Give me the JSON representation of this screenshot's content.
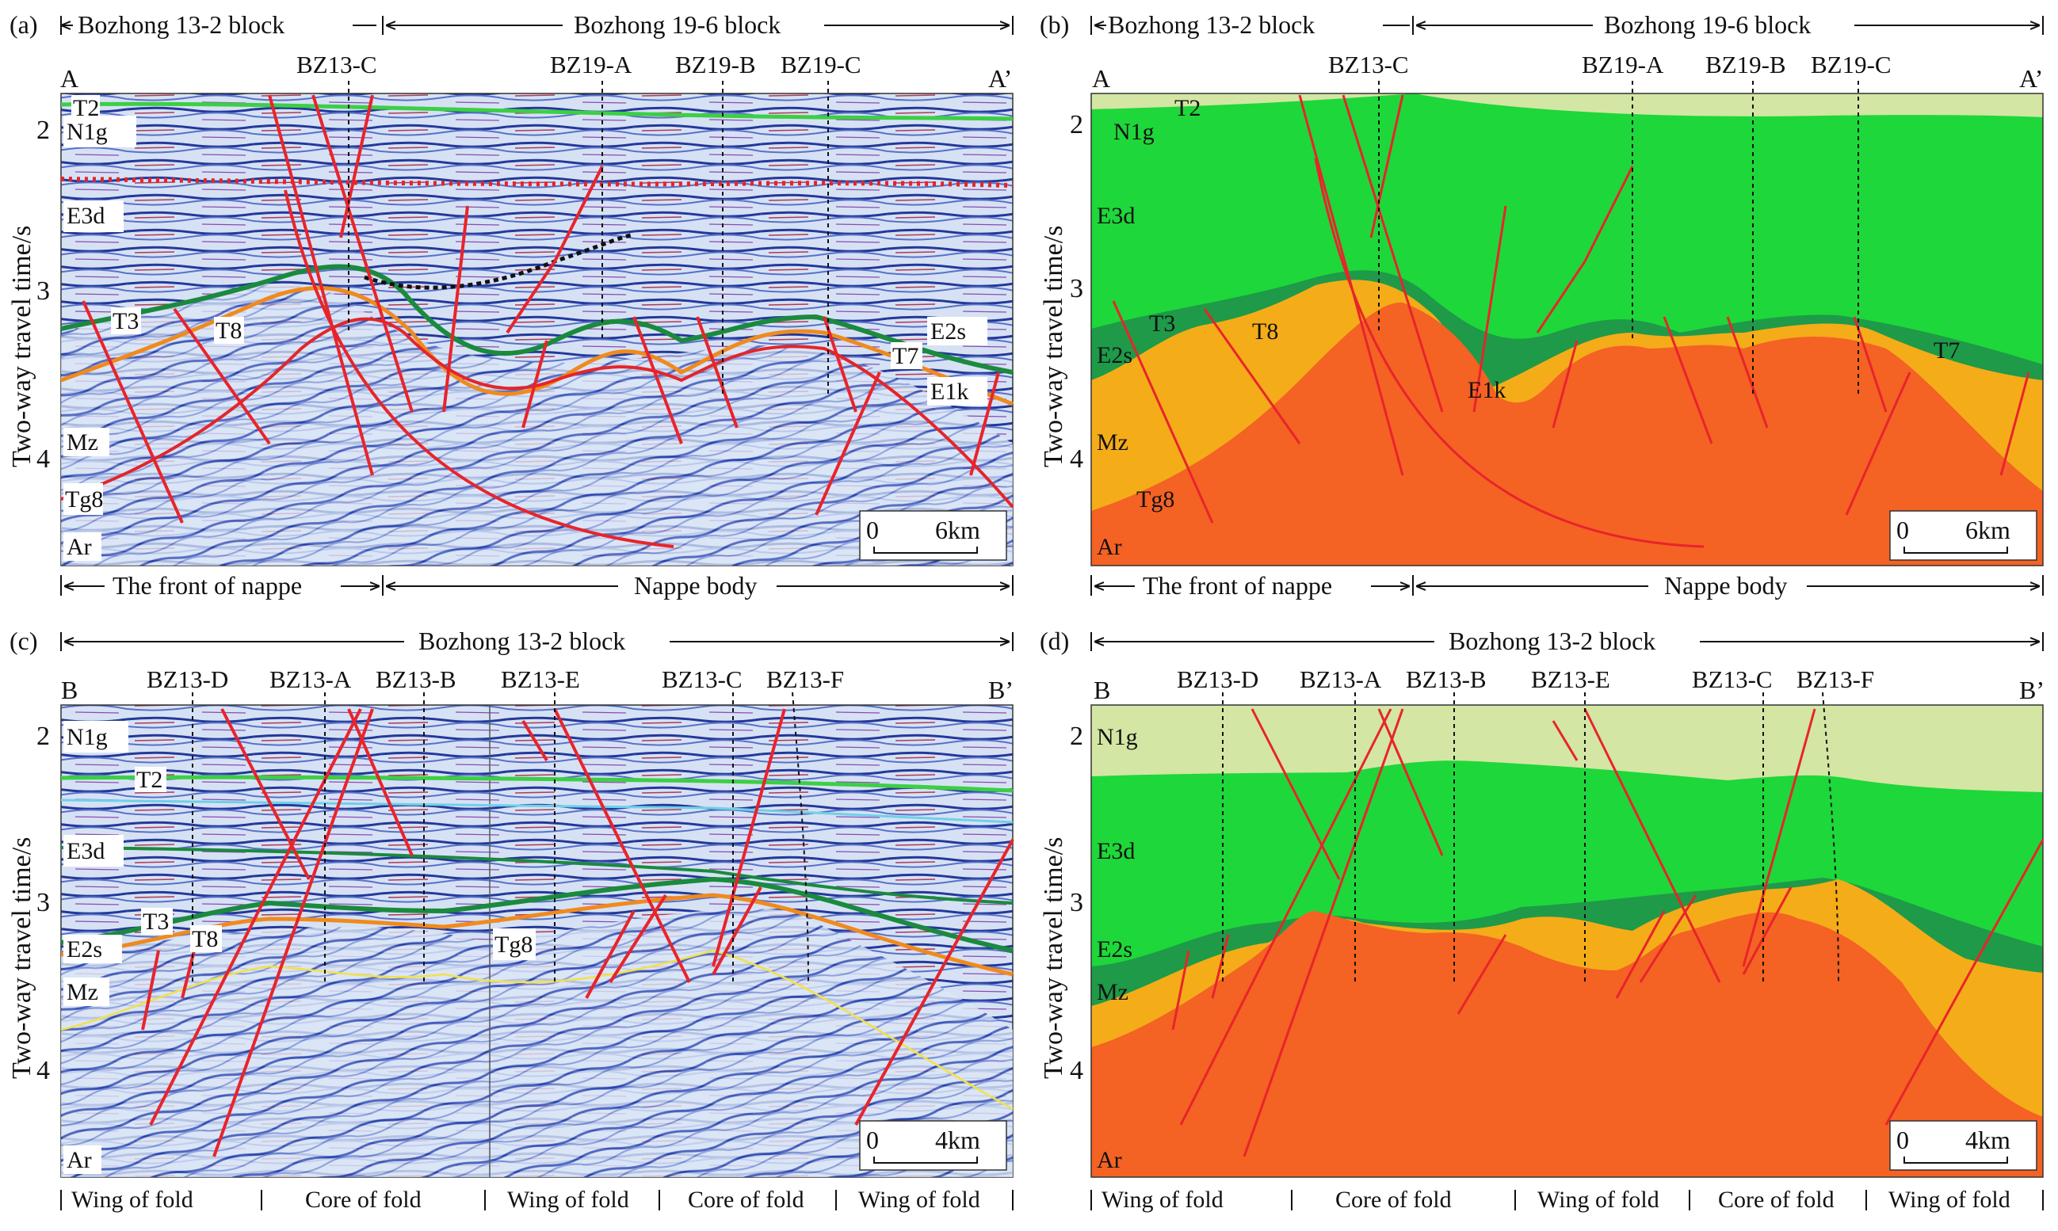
{
  "y_axis_title": "Two-way travel time/s",
  "panels": {
    "a": {
      "tag": "(a)",
      "end_left": "A",
      "end_right": "A’",
      "block_left": "Bozhong 13-2 block",
      "block_right": "Bozhong 19-6 block",
      "wells": [
        "BZ13-C",
        "BZ19-A",
        "BZ19-B",
        "BZ19-C"
      ],
      "y_ticks": [
        "2",
        "3",
        "4"
      ],
      "horizons": [
        "T2",
        "T3",
        "T8",
        "T7",
        "Tg8"
      ],
      "strata": [
        "N1g",
        "E3d",
        "E2s",
        "E1k",
        "Mz",
        "Ar"
      ],
      "scale": {
        "zero": "0",
        "length": "6km"
      },
      "zones": [
        "The front of nappe",
        "Nappe body"
      ]
    },
    "b": {
      "tag": "(b)",
      "end_left": "A",
      "end_right": "A’",
      "block_left": "Bozhong 13-2 block",
      "block_right": "Bozhong 19-6 block",
      "wells": [
        "BZ13-C",
        "BZ19-A",
        "BZ19-B",
        "BZ19-C"
      ],
      "y_ticks": [
        "2",
        "3",
        "4"
      ],
      "horizons": [
        "T2",
        "T3",
        "T8",
        "T7",
        "Tg8"
      ],
      "strata": [
        "N1g",
        "E3d",
        "E2s",
        "E1k",
        "Mz",
        "Ar"
      ],
      "scale": {
        "zero": "0",
        "length": "6km"
      },
      "zones": [
        "The front of nappe",
        "Nappe body"
      ]
    },
    "c": {
      "tag": "(c)",
      "end_left": "B",
      "end_right": "B’",
      "block": "Bozhong 13-2 block",
      "wells": [
        "BZ13-D",
        "BZ13-A",
        "BZ13-B",
        "BZ13-E",
        "BZ13-C",
        "BZ13-F"
      ],
      "y_ticks": [
        "2",
        "3",
        "4"
      ],
      "horizons": [
        "T2",
        "T3",
        "T8",
        "Tg8"
      ],
      "strata": [
        "N1g",
        "E3d",
        "E2s",
        "Mz",
        "Ar"
      ],
      "scale": {
        "zero": "0",
        "length": "4km"
      },
      "zones": [
        "Wing of fold",
        "Core of fold",
        "Wing of fold",
        "Core of fold",
        "Wing of fold"
      ]
    },
    "d": {
      "tag": "(d)",
      "end_left": "B",
      "end_right": "B’",
      "block": "Bozhong 13-2 block",
      "wells": [
        "BZ13-D",
        "BZ13-A",
        "BZ13-B",
        "BZ13-E",
        "BZ13-C",
        "BZ13-F"
      ],
      "y_ticks": [
        "2",
        "3",
        "4"
      ],
      "strata": [
        "N1g",
        "E3d",
        "E2s",
        "Mz",
        "Ar"
      ],
      "scale": {
        "zero": "0",
        "length": "4km"
      },
      "zones": [
        "Wing of fold",
        "Core of fold",
        "Wing of fold",
        "Core of fold",
        "Wing of fold"
      ]
    }
  },
  "colors": {
    "n1g": "#d3e6a3",
    "e3d": "#1ed73a",
    "e2s": "#1e9a48",
    "mz": "#f5ac19",
    "ar": "#f46224",
    "fault": "#e8242b",
    "seis_bg": "#c9d8f0",
    "seis_line": "#2c3f95"
  }
}
